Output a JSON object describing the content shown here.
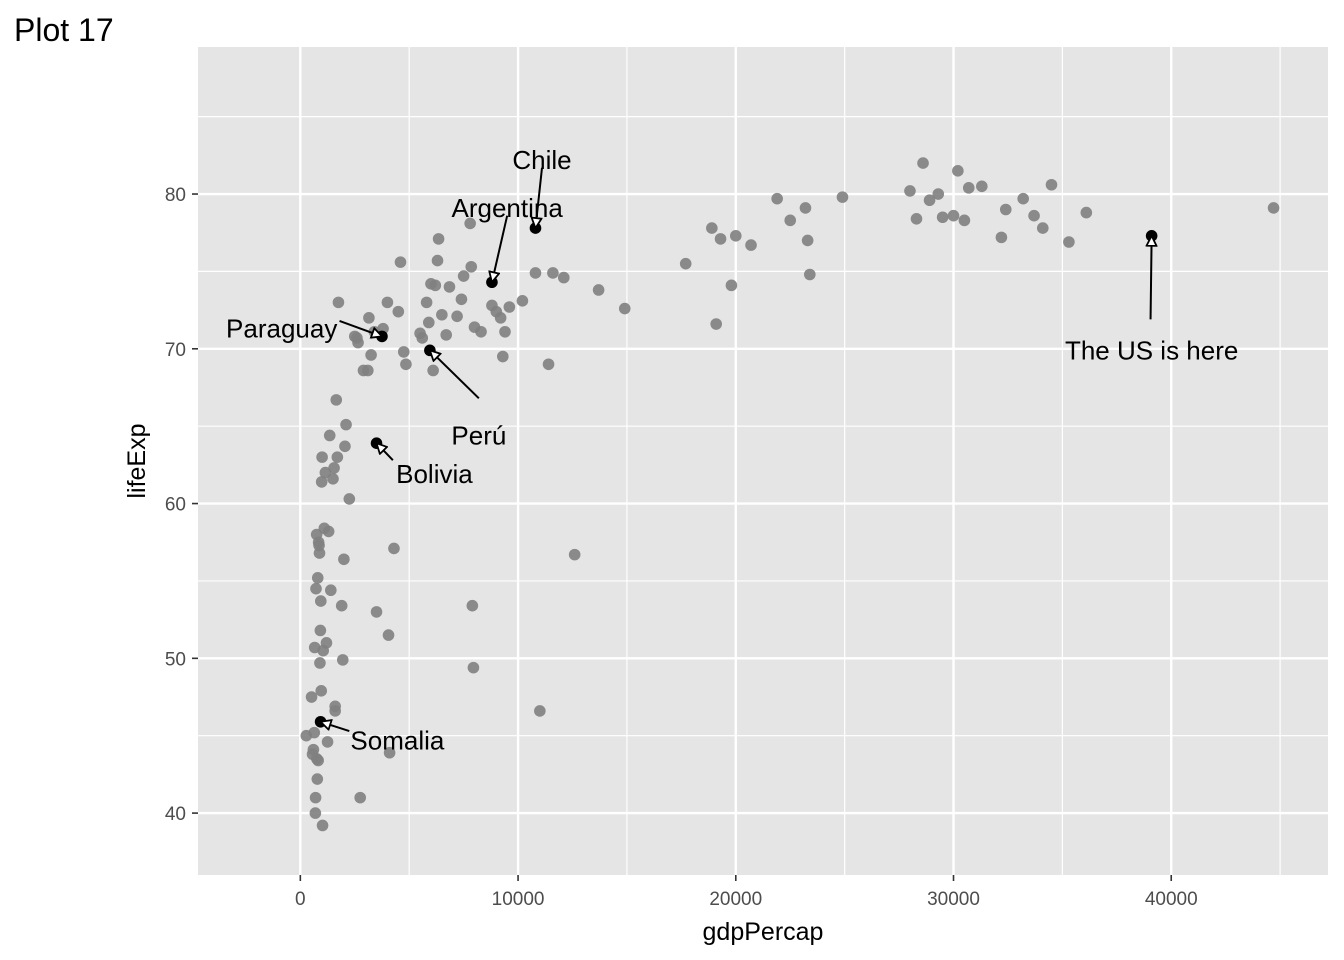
{
  "chart_data": {
    "type": "scatter",
    "title": "Plot 17",
    "xlabel": "gdpPercap",
    "ylabel": "lifeExp",
    "xlim": [
      -4700,
      47200
    ],
    "ylim": [
      36,
      89.5
    ],
    "x_ticks": [
      0,
      10000,
      20000,
      30000,
      40000
    ],
    "x_tick_labels": [
      "0",
      "10000",
      "20000",
      "30000",
      "40000"
    ],
    "y_ticks": [
      40,
      50,
      60,
      70,
      80
    ],
    "y_tick_labels": [
      "40",
      "50",
      "60",
      "70",
      "80"
    ],
    "grid": true,
    "background_color": "#e5e5e5",
    "grid_color": "#ffffff",
    "point_color": "#7f7f7f",
    "highlight_color": "#000000",
    "points": [
      [
        275,
        45.0
      ],
      [
        515,
        47.5
      ],
      [
        560,
        43.8
      ],
      [
        600,
        44.1
      ],
      [
        640,
        45.2
      ],
      [
        660,
        50.7
      ],
      [
        690,
        40.0
      ],
      [
        700,
        41.0
      ],
      [
        720,
        54.5
      ],
      [
        750,
        58.0
      ],
      [
        760,
        43.5
      ],
      [
        780,
        42.2
      ],
      [
        800,
        55.2
      ],
      [
        820,
        43.4
      ],
      [
        840,
        57.5
      ],
      [
        860,
        57.3
      ],
      [
        880,
        56.8
      ],
      [
        900,
        49.7
      ],
      [
        920,
        51.8
      ],
      [
        940,
        53.7
      ],
      [
        960,
        47.9
      ],
      [
        980,
        61.4
      ],
      [
        1000,
        63.0
      ],
      [
        1020,
        39.2
      ],
      [
        1050,
        50.5
      ],
      [
        1100,
        58.4
      ],
      [
        1150,
        62.0
      ],
      [
        1200,
        51.0
      ],
      [
        1250,
        44.6
      ],
      [
        1300,
        58.2
      ],
      [
        1350,
        64.4
      ],
      [
        1400,
        54.4
      ],
      [
        1500,
        61.6
      ],
      [
        1550,
        62.3
      ],
      [
        1600,
        46.9
      ],
      [
        1600,
        46.6
      ],
      [
        1650,
        66.7
      ],
      [
        1700,
        63.0
      ],
      [
        1750,
        73.0
      ],
      [
        1900,
        53.4
      ],
      [
        1950,
        49.9
      ],
      [
        2000,
        56.4
      ],
      [
        2050,
        63.7
      ],
      [
        2100,
        65.1
      ],
      [
        2250,
        60.3
      ],
      [
        2500,
        70.8
      ],
      [
        2600,
        70.7
      ],
      [
        2650,
        70.4
      ],
      [
        2750,
        41.0
      ],
      [
        2900,
        68.6
      ],
      [
        3100,
        68.6
      ],
      [
        3150,
        72.0
      ],
      [
        3250,
        69.6
      ],
      [
        3400,
        71.1
      ],
      [
        3500,
        53.0
      ],
      [
        3800,
        71.3
      ],
      [
        4000,
        73.0
      ],
      [
        4050,
        51.5
      ],
      [
        4100,
        43.9
      ],
      [
        4300,
        57.1
      ],
      [
        4500,
        72.4
      ],
      [
        4600,
        75.6
      ],
      [
        4750,
        69.8
      ],
      [
        4850,
        69.0
      ],
      [
        5500,
        71.0
      ],
      [
        5600,
        70.7
      ],
      [
        5800,
        73.0
      ],
      [
        5900,
        71.7
      ],
      [
        6000,
        74.2
      ],
      [
        6100,
        68.6
      ],
      [
        6200,
        74.1
      ],
      [
        6300,
        75.7
      ],
      [
        6350,
        77.1
      ],
      [
        6500,
        72.2
      ],
      [
        6700,
        70.9
      ],
      [
        6850,
        74.0
      ],
      [
        7200,
        72.1
      ],
      [
        7400,
        73.2
      ],
      [
        7500,
        74.7
      ],
      [
        7800,
        78.1
      ],
      [
        7850,
        75.3
      ],
      [
        7900,
        53.4
      ],
      [
        7950,
        49.4
      ],
      [
        8000,
        71.4
      ],
      [
        8300,
        71.1
      ],
      [
        8800,
        72.8
      ],
      [
        9000,
        72.4
      ],
      [
        9200,
        72.0
      ],
      [
        9300,
        69.5
      ],
      [
        9400,
        71.1
      ],
      [
        9600,
        72.7
      ],
      [
        10200,
        73.1
      ],
      [
        10800,
        74.9
      ],
      [
        11000,
        46.6
      ],
      [
        11400,
        69.0
      ],
      [
        11600,
        74.9
      ],
      [
        12100,
        74.6
      ],
      [
        12600,
        56.7
      ],
      [
        13700,
        73.8
      ],
      [
        14900,
        72.6
      ],
      [
        17700,
        75.5
      ],
      [
        18900,
        77.8
      ],
      [
        19100,
        71.6
      ],
      [
        19300,
        77.1
      ],
      [
        19800,
        74.1
      ],
      [
        20000,
        77.3
      ],
      [
        20700,
        76.7
      ],
      [
        21900,
        79.7
      ],
      [
        22500,
        78.3
      ],
      [
        23200,
        79.1
      ],
      [
        23300,
        77.0
      ],
      [
        23400,
        74.8
      ],
      [
        24900,
        79.8
      ],
      [
        28000,
        80.2
      ],
      [
        28300,
        78.4
      ],
      [
        28600,
        82.0
      ],
      [
        28900,
        79.6
      ],
      [
        29300,
        80.0
      ],
      [
        29500,
        78.5
      ],
      [
        30000,
        78.6
      ],
      [
        30200,
        81.5
      ],
      [
        30500,
        78.3
      ],
      [
        30700,
        80.4
      ],
      [
        31300,
        80.5
      ],
      [
        32200,
        77.2
      ],
      [
        32400,
        79.0
      ],
      [
        33200,
        79.7
      ],
      [
        33700,
        78.6
      ],
      [
        34100,
        77.8
      ],
      [
        34500,
        80.6
      ],
      [
        35300,
        76.9
      ],
      [
        36100,
        78.8
      ],
      [
        44700,
        79.1
      ]
    ],
    "highlighted": [
      {
        "name": "Somalia",
        "x": 926,
        "y": 48.2
      },
      {
        "name": "Bolivia",
        "x": 3820,
        "y": 65.6
      },
      {
        "name": "Paraguay",
        "x": 4173,
        "y": 71.8
      },
      {
        "name": "Perú",
        "x": 7409,
        "y": 71.4
      },
      {
        "name": "Argentina",
        "x": 12779,
        "y": 75.3
      },
      {
        "name": "Chile",
        "x": 13172,
        "y": 78.6
      },
      {
        "name": "The US is here",
        "x": 42952,
        "y": 78.2
      }
    ],
    "annotations": [
      {
        "text": "Chile",
        "tx": 11100,
        "ty": 82.2,
        "anchor": "middle",
        "ax": 10800,
        "ay": 77.8
      },
      {
        "text": "Argentina",
        "tx": 9500,
        "ty": 79.1,
        "anchor": "middle",
        "ax": 8800,
        "ay": 74.3
      },
      {
        "text": "Paraguay",
        "tx": 1700,
        "ty": 71.3,
        "anchor": "end",
        "ax": 3750,
        "ay": 70.8
      },
      {
        "text": "Perú",
        "tx": 8200,
        "ty": 64.4,
        "anchor": "middle",
        "ax": 5950,
        "ay": 69.9
      },
      {
        "text": "Bolivia",
        "tx": 4400,
        "ty": 61.9,
        "anchor": "start",
        "ax": 3500,
        "ay": 63.9
      },
      {
        "text": "Somalia",
        "tx": 2300,
        "ty": 44.7,
        "anchor": "start",
        "ax": 930,
        "ay": 45.9
      },
      {
        "text": "The US is here",
        "tx": 39100,
        "ty": 69.9,
        "anchor": "middle",
        "ax": 39100,
        "ay": 77.3
      }
    ],
    "annotation_arrows": [
      {
        "x1": 11100,
        "y1": 81.7,
        "x2": 10800,
        "y2": 77.8
      },
      {
        "x1": 9500,
        "y1": 78.6,
        "x2": 8800,
        "y2": 74.3
      },
      {
        "x1": 1800,
        "y1": 71.8,
        "x2": 3750,
        "y2": 70.8
      },
      {
        "x1": 8200,
        "y1": 66.8,
        "x2": 5950,
        "y2": 69.9
      },
      {
        "x1": 4250,
        "y1": 62.8,
        "x2": 3500,
        "y2": 63.9
      },
      {
        "x1": 2250,
        "y1": 45.3,
        "x2": 930,
        "y2": 45.9
      },
      {
        "x1": 39050,
        "y1": 71.9,
        "x2": 39100,
        "y2": 77.3
      }
    ],
    "labelled_points": [
      {
        "x": 10800,
        "y": 77.8
      },
      {
        "x": 8800,
        "y": 74.3
      },
      {
        "x": 3750,
        "y": 70.8
      },
      {
        "x": 5950,
        "y": 69.9
      },
      {
        "x": 3500,
        "y": 63.9
      },
      {
        "x": 930,
        "y": 45.9
      },
      {
        "x": 39100,
        "y": 77.3
      }
    ]
  }
}
